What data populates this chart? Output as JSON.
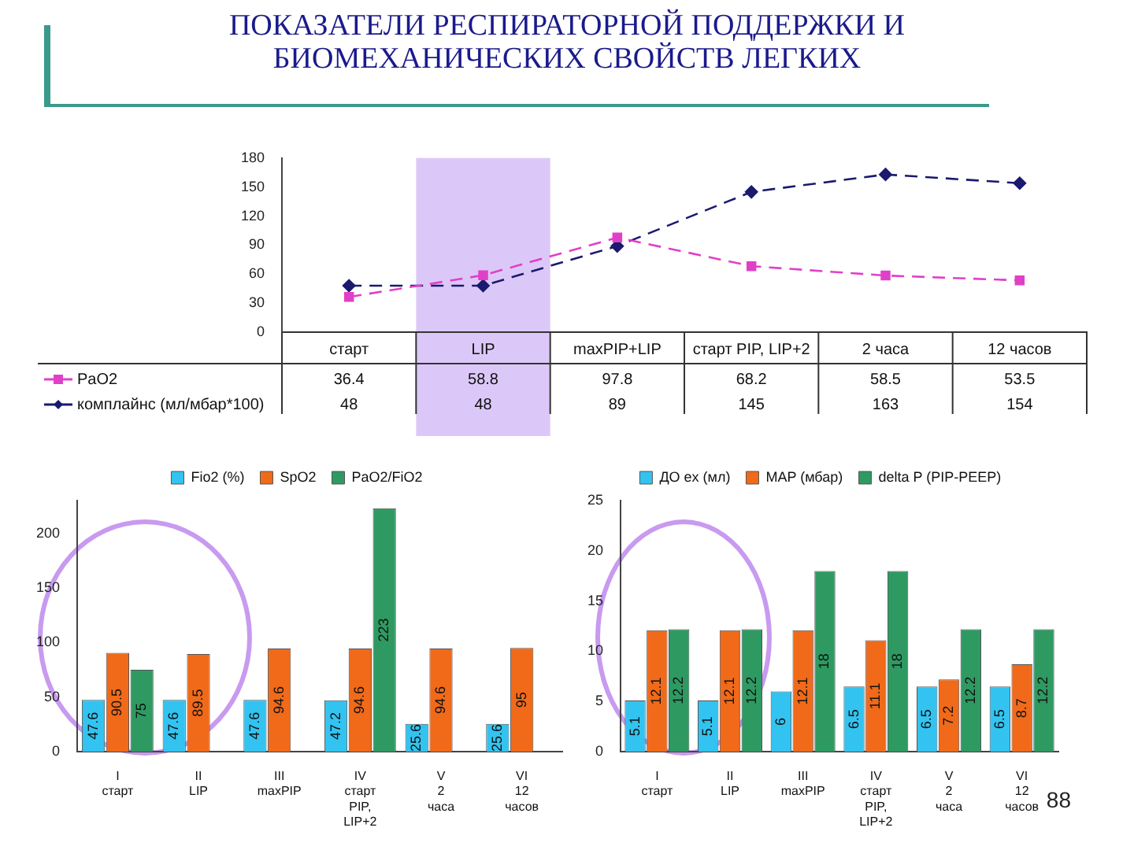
{
  "chart_data": [
    {
      "type": "line",
      "title": "ПОКАЗАТЕЛИ РЕСПИРАТОРНОЙ ПОДДЕРЖКИ И БИОМЕХАНИЧЕСКИХ СВОЙСТВ ЛЕГКИХ",
      "categories": [
        "старт",
        "LIP",
        "maxPIP+LIP",
        "старт PIP, LIP+2",
        "2 часа",
        "12 часов"
      ],
      "series": [
        {
          "name": "PaO2",
          "color": "#e040c8",
          "marker": "square",
          "line_style": "dashed",
          "values": [
            36.4,
            58.8,
            97.8,
            68.2,
            58.5,
            53.5
          ]
        },
        {
          "name": "комплайнс (мл/мбар*100)",
          "color": "#1a1a6e",
          "marker": "diamond",
          "line_style": "dashed",
          "values": [
            48,
            48,
            89,
            145,
            163,
            154
          ]
        }
      ],
      "ylim": [
        0,
        180
      ],
      "yticks": [
        0,
        30,
        60,
        90,
        120,
        150,
        180
      ],
      "grid": false,
      "legend": "bottom",
      "data_labels": true,
      "bands": [
        {
          "axis": "x",
          "from": "LIP",
          "to": "LIP",
          "color": "#dcc8f8"
        }
      ]
    },
    {
      "type": "bar",
      "categories": [
        "I старт",
        "II LIP",
        "III maxPIP",
        "IV старт PIP, LIP+2",
        "V 2 часа",
        "VI 12 часов"
      ],
      "series": [
        {
          "name": "Fio2 (%)",
          "color": "#33c3f0",
          "values": [
            47.6,
            47.6,
            47.6,
            47.2,
            25.6,
            25.6
          ]
        },
        {
          "name": "SpO2",
          "color": "#f06a1a",
          "values": [
            90.5,
            89.5,
            94.6,
            94.6,
            94.6,
            95
          ]
        },
        {
          "name": "PaO2/FiO2",
          "color": "#2e9a62",
          "values": [
            75,
            null,
            null,
            223,
            null,
            null
          ]
        }
      ],
      "ylim": [
        0,
        230
      ],
      "yticks": [
        0,
        50,
        100,
        150,
        200
      ],
      "grid": false,
      "legend": "top",
      "data_labels": true
    },
    {
      "type": "bar",
      "categories": [
        "I старт",
        "II LIP",
        "III maxPIP",
        "IV старт PIP, LIP+2",
        "V 2 часа",
        "VI 12 часов"
      ],
      "series": [
        {
          "name": "ДО ex (мл)",
          "color": "#33c3f0",
          "values": [
            5.1,
            5.1,
            6,
            6.5,
            6.5,
            6.5
          ]
        },
        {
          "name": "MAP (мбар)",
          "color": "#f06a1a",
          "values": [
            12.1,
            12.1,
            12.1,
            11.1,
            7.2,
            8.7
          ]
        },
        {
          "name": "delta P (PIP-PEEP)",
          "color": "#2e9a62",
          "values": [
            12.2,
            12.2,
            18,
            18,
            12.2,
            12.2
          ]
        }
      ],
      "ylim": [
        0,
        25
      ],
      "yticks": [
        0,
        5,
        10,
        15,
        20,
        25
      ],
      "grid": false,
      "legend": "top",
      "data_labels": true,
      "annotations": [
        "88"
      ]
    }
  ]
}
